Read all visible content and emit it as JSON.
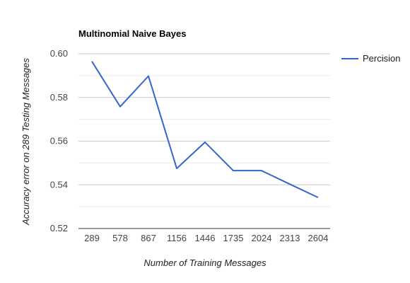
{
  "chart_data": {
    "type": "line",
    "title": "Multinomial Naive Bayes",
    "xlabel": "Number of Training Messages",
    "ylabel": "Accuracy error on  289 Testing Messages",
    "categories": [
      "289",
      "578",
      "867",
      "1156",
      "1446",
      "1735",
      "2024",
      "2313",
      "2604"
    ],
    "series": [
      {
        "name": "Percision",
        "color": "#3366cc",
        "values": [
          0.5965,
          0.5758,
          0.5898,
          0.5475,
          0.5595,
          0.5465,
          0.5465,
          0.5403,
          0.5342
        ]
      }
    ],
    "ylim": [
      0.52,
      0.6
    ],
    "yticks": [
      0.52,
      0.54,
      0.56,
      0.58,
      0.6
    ],
    "ytick_labels": [
      "0.52",
      "0.54",
      "0.56",
      "0.58",
      "0.60"
    ],
    "grid": true,
    "legend": "right"
  }
}
